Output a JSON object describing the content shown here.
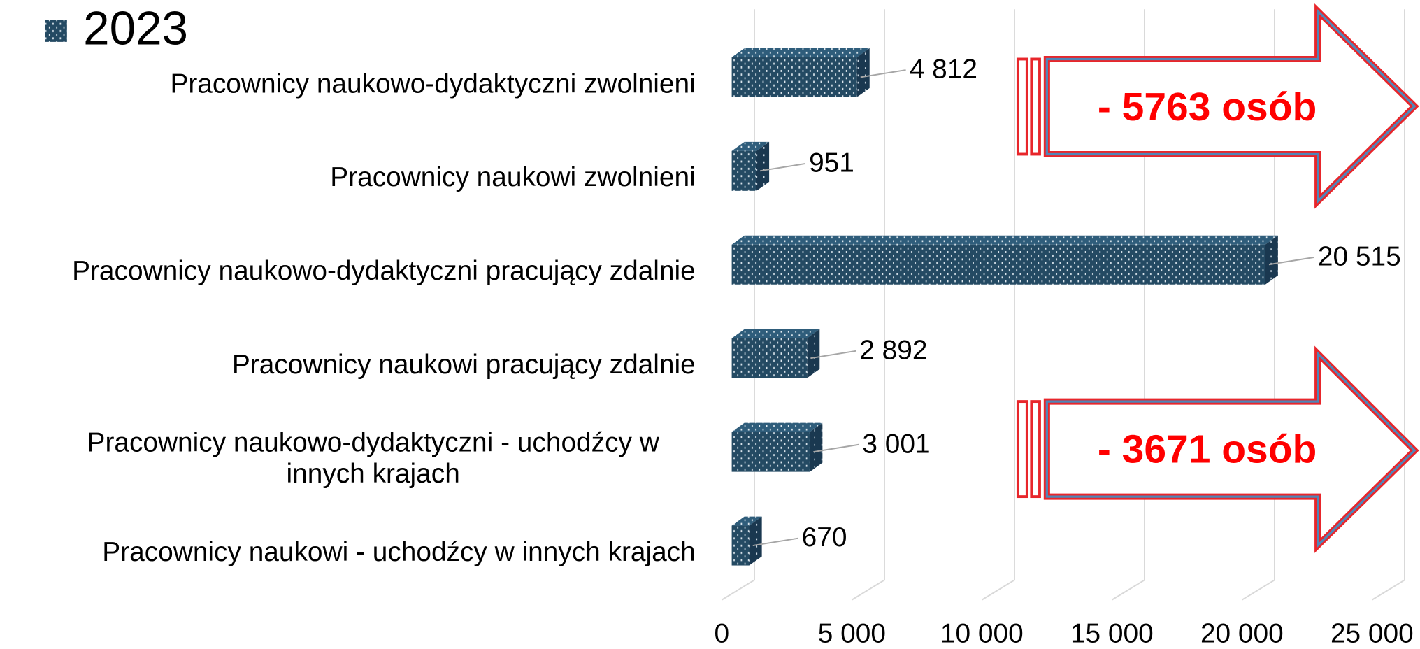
{
  "chart_data": {
    "type": "bar",
    "orientation": "horizontal",
    "three_d": true,
    "categories": [
      "Pracownicy naukowo-dydaktyczni zwolnieni",
      "Pracownicy naukowi zwolnieni",
      "Pracownicy naukowo-dydaktyczni pracujący zdalnie",
      "Pracownicy naukowi pracujący zdalnie",
      "Pracownicy naukowo-dydaktyczni - uchodźcy w innych krajach",
      "Pracownicy naukowi - uchodźcy w innych krajach"
    ],
    "series": [
      {
        "name": "2023",
        "color": "#244a63",
        "values": [
          4812,
          951,
          20515,
          2892,
          3001,
          670
        ],
        "value_labels": [
          "4 812",
          "951",
          "20 515",
          "2 892",
          "3 001",
          "670"
        ]
      }
    ],
    "xlim": [
      0,
      25000
    ],
    "xticks": [
      0,
      {
        "value": 5000,
        "label": "5 000"
      },
      {
        "value": 10000,
        "label": "10 000"
      },
      {
        "value": 15000,
        "label": "15 000"
      },
      {
        "value": 20000,
        "label": "20 000"
      },
      {
        "value": 25000,
        "label": "25 000"
      }
    ],
    "grid": true,
    "legend": "top-left",
    "annotations": [
      "- 5763 osób",
      "- 3671 osób"
    ]
  }
}
